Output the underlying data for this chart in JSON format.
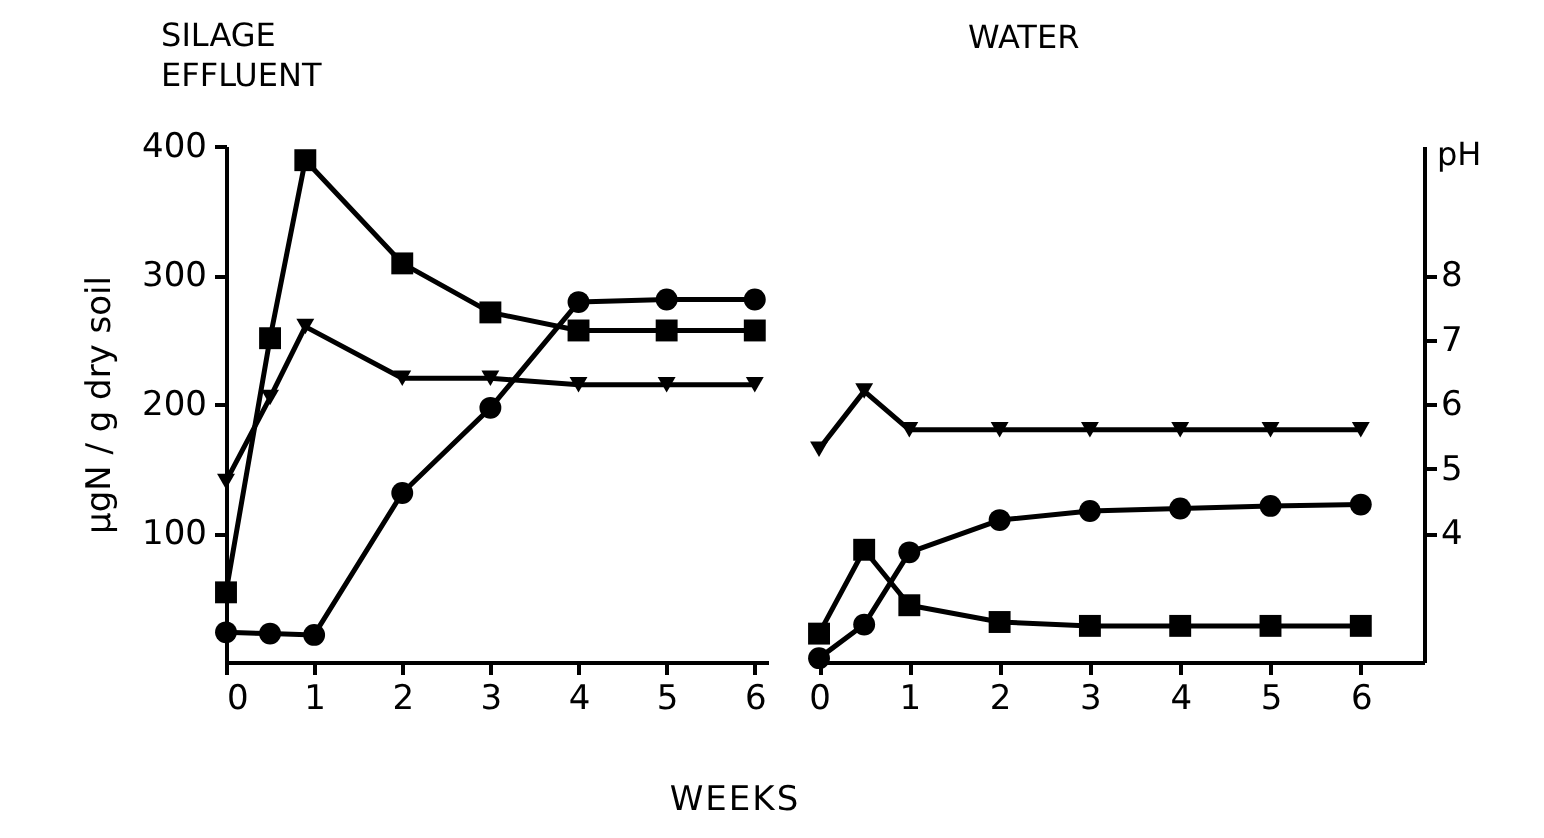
{
  "chart_data": [
    {
      "type": "line",
      "title": "SILAGE\nEFFLUENT",
      "ylabel": "µgN / g dry soil",
      "xlabel": "WEEKS",
      "xlim": [
        0,
        6.15
      ],
      "xticks": [
        0,
        1,
        2,
        3,
        4,
        5,
        6
      ],
      "ylim": [
        0,
        400
      ],
      "yticks": [
        100,
        200,
        300,
        400
      ],
      "y2lim": [
        2,
        10
      ],
      "tick_labels": "xy",
      "series": [
        {
          "x": [
            0,
            0.5,
            0.9,
            2,
            3,
            4,
            5,
            6
          ],
          "values": [
            54,
            251,
            389,
            309,
            271,
            257,
            257,
            257
          ],
          "color": "#000000",
          "marker": "square"
        },
        {
          "x": [
            0,
            0.5,
            1,
            2,
            3,
            4,
            5,
            6
          ],
          "values": [
            23,
            22,
            21,
            131,
            197,
            279,
            281,
            281
          ],
          "color": "#000000",
          "marker": "circle"
        },
        {
          "x": [
            0,
            0.5,
            0.9,
            2,
            3,
            4,
            5,
            6
          ],
          "values": [
            4.8,
            6.1,
            7.2,
            6.4,
            6.4,
            6.3,
            6.3,
            6.3
          ],
          "color": "#000000",
          "marker": "triangle",
          "axis": "y2"
        }
      ]
    },
    {
      "type": "line",
      "title": "WATER",
      "y2label": "pH",
      "xlim": [
        -0.1,
        6.7
      ],
      "xticks": [
        0,
        1,
        2,
        3,
        4,
        5,
        6
      ],
      "ylim": [
        0,
        400
      ],
      "y2lim": [
        2,
        10
      ],
      "y2ticks": [
        4,
        5,
        6,
        7,
        8
      ],
      "tick_labels": "xy2",
      "series": [
        {
          "x": [
            0,
            0.5,
            1,
            2,
            3,
            4,
            5,
            6
          ],
          "values": [
            22,
            87,
            44,
            31,
            28,
            28,
            28,
            28
          ],
          "color": "#000000",
          "marker": "square"
        },
        {
          "x": [
            0,
            0.5,
            1,
            2,
            3,
            4,
            5,
            6
          ],
          "values": [
            3,
            29,
            85,
            110,
            117,
            119,
            121,
            122
          ],
          "color": "#000000",
          "marker": "circle"
        },
        {
          "x": [
            0,
            0.5,
            1,
            2,
            3,
            4,
            5,
            6
          ],
          "values": [
            5.3,
            6.2,
            5.6,
            5.6,
            5.6,
            5.6,
            5.6,
            5.6
          ],
          "color": "#000000",
          "marker": "triangle",
          "axis": "y2"
        }
      ]
    }
  ]
}
